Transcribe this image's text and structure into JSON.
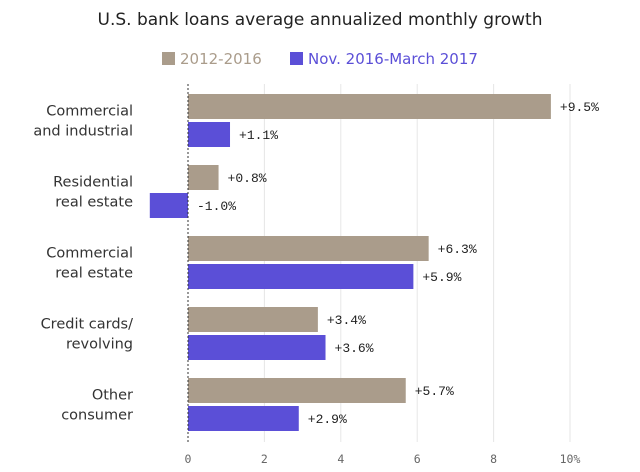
{
  "chart_data": {
    "type": "bar",
    "orientation": "horizontal",
    "title": "U.S. bank loans average annualized monthly growth",
    "categories": [
      [
        "Commercial",
        "and industrial"
      ],
      [
        "Residential",
        "real estate"
      ],
      [
        "Commercial",
        "real estate"
      ],
      [
        "Credit cards/",
        "revolving"
      ],
      [
        "Other",
        "consumer"
      ]
    ],
    "series": [
      {
        "name": "2012-2016",
        "color": "#aa9c8b",
        "values": [
          9.5,
          0.8,
          6.3,
          3.4,
          5.7
        ],
        "labels": [
          "+9.5%",
          "+0.8%",
          "+6.3%",
          "+3.4%",
          "+5.7%"
        ]
      },
      {
        "name": "Nov. 2016-March 2017",
        "color": "#5b4fd7",
        "values": [
          1.1,
          -1.0,
          5.9,
          3.6,
          2.9
        ],
        "labels": [
          "+1.1%",
          "-1.0%",
          "+5.9%",
          "+3.6%",
          "+2.9%"
        ]
      }
    ],
    "xlim": [
      -1,
      10
    ],
    "xticks": [
      0,
      2,
      4,
      6,
      8,
      10
    ],
    "xtick_labels": [
      "0",
      "2",
      "4",
      "6",
      "8",
      "10%"
    ],
    "grid": true,
    "legend_position": "top"
  }
}
